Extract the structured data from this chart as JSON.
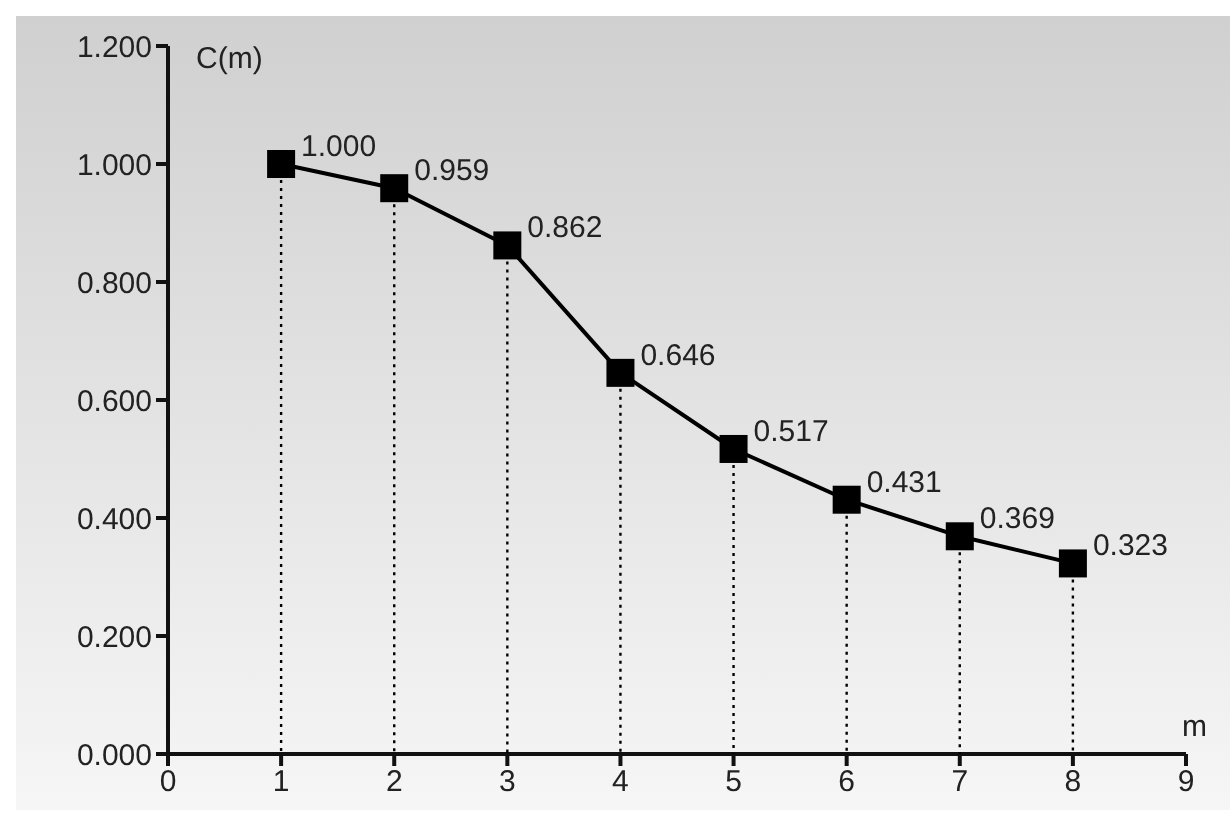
{
  "chart_data": {
    "type": "line",
    "xlabel": "m",
    "ylabel": "C(m)",
    "x": [
      1,
      2,
      3,
      4,
      5,
      6,
      7,
      8
    ],
    "series": [
      {
        "color": "#000000",
        "values": [
          1.0,
          0.959,
          0.862,
          0.646,
          0.517,
          0.431,
          0.369,
          0.323
        ],
        "value_labels": [
          "1.000",
          "0.959",
          "0.862",
          "0.646",
          "0.517",
          "0.431",
          "0.369",
          "0.323"
        ]
      }
    ],
    "xlim": [
      0,
      9
    ],
    "xticks": [
      0,
      1,
      2,
      3,
      4,
      5,
      6,
      7,
      8,
      9
    ],
    "ylim": [
      0,
      1.2
    ],
    "yticks": [
      {
        "value": 0,
        "label": "0.000"
      },
      {
        "value": 0.2,
        "label": "0.200"
      },
      {
        "value": 0.4,
        "label": "0.400"
      },
      {
        "value": 0.6,
        "label": "0.600"
      },
      {
        "value": 0.8,
        "label": "0.800"
      },
      {
        "value": 1.0,
        "label": "1.000"
      },
      {
        "value": 1.2,
        "label": "1.200"
      }
    ],
    "marker": "square",
    "line_style": "solid",
    "grid": "x"
  }
}
